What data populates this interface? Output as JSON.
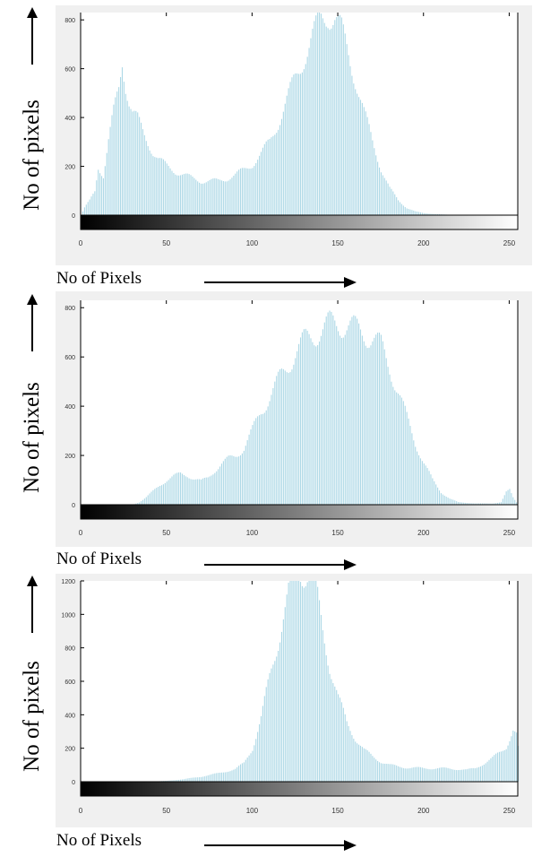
{
  "charts": [
    {
      "y_axis_label": "No of pixels",
      "x_axis_label": "No of Pixels"
    },
    {
      "y_axis_label": "No of pixels",
      "x_axis_label": "No of Pixels"
    },
    {
      "y_axis_label": "No of pixels",
      "x_axis_label": "No of Pixels"
    }
  ],
  "colors": {
    "bar": "#add8e6",
    "panel_background": "#f0f0f0",
    "axis": "#000000"
  },
  "chart_data": [
    {
      "type": "bar",
      "xlim": [
        0,
        255
      ],
      "ylim": [
        -30,
        830
      ],
      "xticks": [
        0,
        50,
        100,
        150,
        200,
        250
      ],
      "yticks": [
        0,
        200,
        400,
        600,
        800
      ],
      "grid": false,
      "colorbar": "grayscale 0-255",
      "profile": [
        [
          0,
          0
        ],
        [
          2,
          30
        ],
        [
          5,
          60
        ],
        [
          8,
          100
        ],
        [
          10,
          200
        ],
        [
          13,
          160
        ],
        [
          16,
          300
        ],
        [
          19,
          420
        ],
        [
          22,
          520
        ],
        [
          24,
          640
        ],
        [
          26,
          540
        ],
        [
          28,
          470
        ],
        [
          30,
          420
        ],
        [
          33,
          390
        ],
        [
          36,
          340
        ],
        [
          39,
          300
        ],
        [
          42,
          260
        ],
        [
          45,
          230
        ],
        [
          50,
          200
        ],
        [
          55,
          180
        ],
        [
          60,
          165
        ],
        [
          65,
          150
        ],
        [
          70,
          140
        ],
        [
          75,
          140
        ],
        [
          80,
          140
        ],
        [
          85,
          150
        ],
        [
          90,
          165
        ],
        [
          95,
          185
        ],
        [
          100,
          210
        ],
        [
          105,
          250
        ],
        [
          110,
          300
        ],
        [
          115,
          380
        ],
        [
          120,
          470
        ],
        [
          125,
          560
        ],
        [
          130,
          650
        ],
        [
          135,
          730
        ],
        [
          140,
          800
        ],
        [
          144,
          830
        ],
        [
          148,
          810
        ],
        [
          152,
          750
        ],
        [
          156,
          660
        ],
        [
          160,
          560
        ],
        [
          165,
          420
        ],
        [
          170,
          300
        ],
        [
          175,
          190
        ],
        [
          180,
          110
        ],
        [
          185,
          60
        ],
        [
          190,
          30
        ],
        [
          195,
          15
        ],
        [
          200,
          8
        ],
        [
          210,
          3
        ],
        [
          220,
          0
        ],
        [
          255,
          0
        ]
      ]
    },
    {
      "type": "bar",
      "xlim": [
        0,
        255
      ],
      "ylim": [
        -30,
        830
      ],
      "xticks": [
        0,
        50,
        100,
        150,
        200,
        250
      ],
      "yticks": [
        0,
        200,
        400,
        600,
        800
      ],
      "grid": false,
      "colorbar": "grayscale 0-255",
      "profile": [
        [
          0,
          0
        ],
        [
          30,
          0
        ],
        [
          34,
          10
        ],
        [
          38,
          30
        ],
        [
          42,
          55
        ],
        [
          46,
          80
        ],
        [
          50,
          100
        ],
        [
          54,
          115
        ],
        [
          58,
          125
        ],
        [
          62,
          120
        ],
        [
          66,
          105
        ],
        [
          70,
          95
        ],
        [
          74,
          110
        ],
        [
          78,
          140
        ],
        [
          82,
          165
        ],
        [
          86,
          185
        ],
        [
          90,
          200
        ],
        [
          95,
          230
        ],
        [
          100,
          300
        ],
        [
          105,
          380
        ],
        [
          110,
          440
        ],
        [
          115,
          500
        ],
        [
          120,
          560
        ],
        [
          125,
          620
        ],
        [
          130,
          660
        ],
        [
          135,
          690
        ],
        [
          140,
          710
        ],
        [
          145,
          730
        ],
        [
          150,
          740
        ],
        [
          155,
          730
        ],
        [
          160,
          710
        ],
        [
          165,
          700
        ],
        [
          170,
          680
        ],
        [
          175,
          640
        ],
        [
          180,
          560
        ],
        [
          185,
          460
        ],
        [
          190,
          350
        ],
        [
          195,
          250
        ],
        [
          200,
          170
        ],
        [
          205,
          100
        ],
        [
          210,
          50
        ],
        [
          215,
          25
        ],
        [
          220,
          10
        ],
        [
          230,
          5
        ],
        [
          240,
          5
        ],
        [
          245,
          10
        ],
        [
          248,
          50
        ],
        [
          250,
          60
        ],
        [
          252,
          30
        ],
        [
          255,
          0
        ]
      ]
    },
    {
      "type": "bar",
      "xlim": [
        0,
        255
      ],
      "ylim": [
        -80,
        1200
      ],
      "xticks": [
        0,
        50,
        100,
        150,
        200,
        250
      ],
      "yticks": [
        0,
        200,
        400,
        600,
        800,
        1000,
        1200
      ],
      "grid": false,
      "colorbar": "grayscale 0-255",
      "profile": [
        [
          0,
          0
        ],
        [
          40,
          0
        ],
        [
          50,
          5
        ],
        [
          60,
          15
        ],
        [
          70,
          30
        ],
        [
          80,
          50
        ],
        [
          90,
          75
        ],
        [
          95,
          110
        ],
        [
          100,
          200
        ],
        [
          105,
          380
        ],
        [
          110,
          620
        ],
        [
          115,
          850
        ],
        [
          118,
          1000
        ],
        [
          121,
          1120
        ],
        [
          124,
          1200
        ],
        [
          128,
          1260
        ],
        [
          132,
          1260
        ],
        [
          135,
          1200
        ],
        [
          138,
          1080
        ],
        [
          141,
          900
        ],
        [
          145,
          700
        ],
        [
          150,
          500
        ],
        [
          155,
          350
        ],
        [
          160,
          260
        ],
        [
          165,
          190
        ],
        [
          170,
          150
        ],
        [
          175,
          120
        ],
        [
          180,
          100
        ],
        [
          185,
          90
        ],
        [
          190,
          85
        ],
        [
          200,
          80
        ],
        [
          210,
          80
        ],
        [
          220,
          75
        ],
        [
          225,
          70
        ],
        [
          230,
          80
        ],
        [
          235,
          110
        ],
        [
          240,
          140
        ],
        [
          245,
          180
        ],
        [
          248,
          210
        ],
        [
          250,
          260
        ],
        [
          252,
          310
        ],
        [
          254,
          280
        ],
        [
          255,
          200
        ]
      ]
    }
  ]
}
